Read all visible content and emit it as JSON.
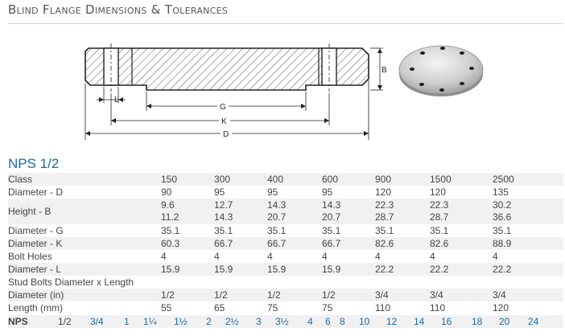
{
  "page": {
    "title": "Blind Flange Dimensions & Tolerances",
    "nps_heading": "NPS 1/2"
  },
  "drawing": {
    "labels": {
      "b": "B",
      "l": "L",
      "g": "G",
      "k": "K",
      "d": "D"
    }
  },
  "photo": {
    "description_icon": "blind-flange-photo"
  },
  "table": {
    "rows": [
      {
        "label": "Class",
        "values": [
          "150",
          "300",
          "400",
          "600",
          "900",
          "1500",
          "2500"
        ],
        "shade": true
      },
      {
        "label": "Diameter - D",
        "values": [
          "90",
          "95",
          "95",
          "95",
          "120",
          "120",
          "135"
        ],
        "shade": false
      },
      {
        "label": "Height - B",
        "values": [
          "9.6",
          "12.7",
          "14.3",
          "14.3",
          "22.3",
          "22.3",
          "30.2"
        ],
        "values2": [
          "11.2",
          "14.3",
          "20.7",
          "20.7",
          "28.7",
          "28.7",
          "36.6"
        ],
        "shade": true
      },
      {
        "label": "Diameter - G",
        "values": [
          "35.1",
          "35.1",
          "35.1",
          "35.1",
          "35.1",
          "35.1",
          "35.1"
        ],
        "shade": false
      },
      {
        "label": "Diameter - K",
        "values": [
          "60.3",
          "66.7",
          "66.7",
          "66.7",
          "82.6",
          "82.6",
          "88.9"
        ],
        "shade": true
      },
      {
        "label": "Bolt Holes",
        "values": [
          "4",
          "4",
          "4",
          "4",
          "4",
          "4",
          "4"
        ],
        "shade": false
      },
      {
        "label": "Diameter - L",
        "values": [
          "15.9",
          "15.9",
          "15.9",
          "15.9",
          "22.2",
          "22.2",
          "22.2"
        ],
        "shade": true
      },
      {
        "label": "Stud Bolts Diameter x Length",
        "values": [
          "",
          "",
          "",
          "",
          "",
          "",
          ""
        ],
        "shade": false
      },
      {
        "label": "Diameter (in)",
        "values": [
          "1/2",
          "1/2",
          "1/2",
          "1/2",
          "3/4",
          "3/4",
          "3/4"
        ],
        "shade": true
      },
      {
        "label": "Length (mm)",
        "values": [
          "55",
          "65",
          "75",
          "75",
          "110",
          "110",
          "120"
        ],
        "shade": false
      }
    ]
  },
  "nps_nav": {
    "label": "NPS",
    "sizes": [
      "1/2",
      "3/4",
      "1",
      "1¼",
      "1½",
      "2",
      "2½",
      "3",
      "3½",
      "4",
      "6",
      "8",
      "10",
      "12",
      "14",
      "16",
      "18",
      "20",
      "24"
    ],
    "current": "1/2"
  },
  "colors": {
    "link": "#1a6aa8",
    "shade": "#f1f1f1",
    "hatch": "#555555"
  }
}
